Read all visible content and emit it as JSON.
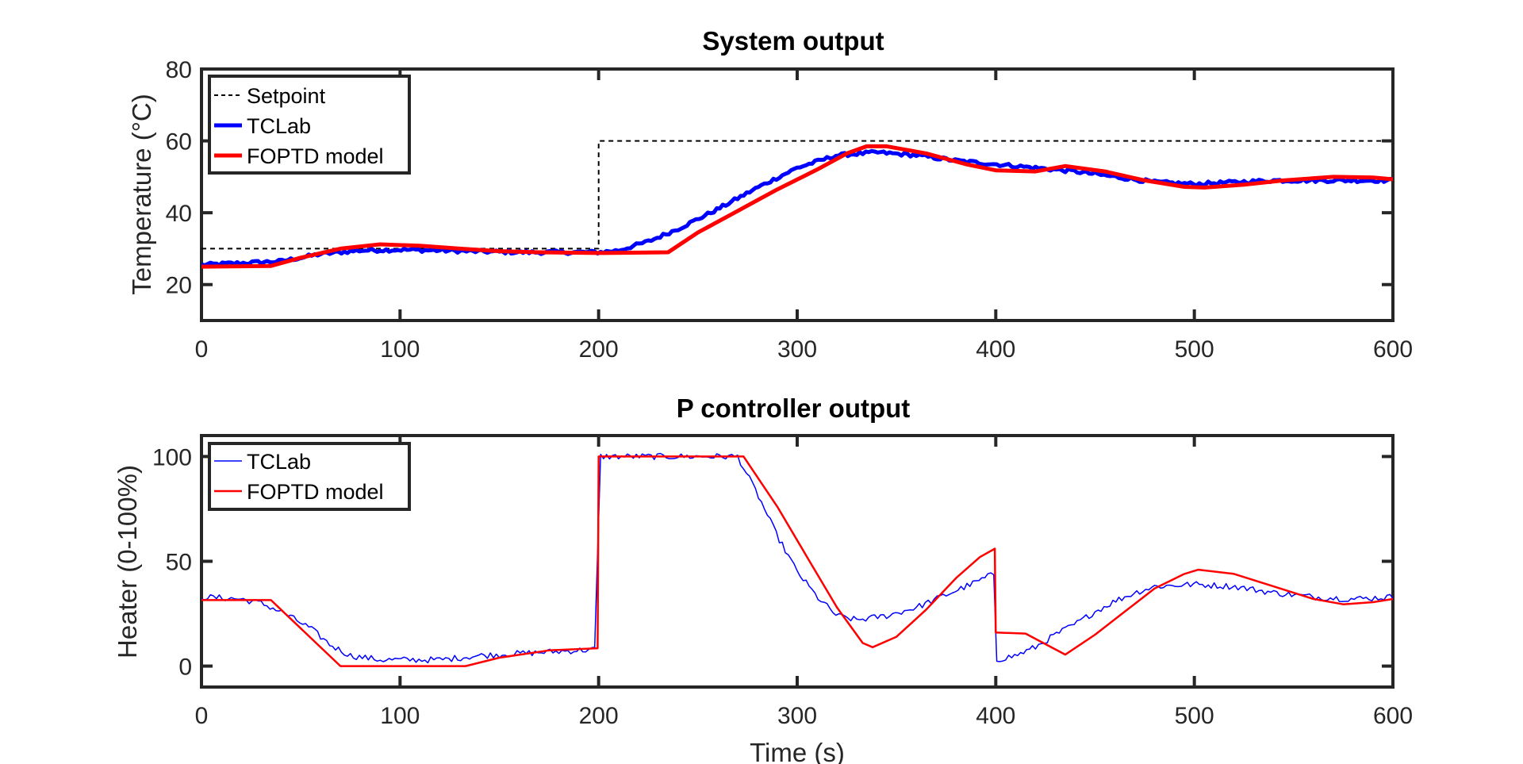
{
  "chart_data": [
    {
      "type": "line",
      "title": "System output",
      "xlabel": "",
      "ylabel": "Temperature (°C)",
      "xlim": [
        0,
        600
      ],
      "ylim": [
        10,
        80
      ],
      "xticks": [
        "0",
        "100",
        "200",
        "300",
        "400",
        "500",
        "600"
      ],
      "yticks": [
        "20",
        "40",
        "60",
        "80"
      ],
      "grid": false,
      "legend_position": "top-left",
      "series": [
        {
          "name": "Setpoint",
          "style": "dashed",
          "color": "#000000",
          "points": [
            [
              0,
              30
            ],
            [
              200,
              30
            ],
            [
              200,
              60
            ],
            [
              600,
              60
            ]
          ]
        },
        {
          "name": "TCLab",
          "style": "solid-noisy",
          "color": "#0000ff",
          "noise": 0.5,
          "points": [
            [
              0,
              25.5
            ],
            [
              20,
              26
            ],
            [
              40,
              26.5
            ],
            [
              60,
              28.5
            ],
            [
              80,
              29.5
            ],
            [
              100,
              29.7
            ],
            [
              120,
              29.5
            ],
            [
              140,
              29.2
            ],
            [
              160,
              29.0
            ],
            [
              180,
              29.0
            ],
            [
              200,
              29.0
            ],
            [
              210,
              29.5
            ],
            [
              225,
              32
            ],
            [
              240,
              35.5
            ],
            [
              260,
              41
            ],
            [
              280,
              47
            ],
            [
              300,
              52.5
            ],
            [
              320,
              56
            ],
            [
              340,
              56.8
            ],
            [
              360,
              56
            ],
            [
              380,
              54.5
            ],
            [
              400,
              53.5
            ],
            [
              420,
              52.5
            ],
            [
              440,
              51.5
            ],
            [
              460,
              50
            ],
            [
              480,
              48.5
            ],
            [
              500,
              48
            ],
            [
              520,
              48.5
            ],
            [
              540,
              49
            ],
            [
              560,
              49
            ],
            [
              580,
              49
            ],
            [
              600,
              49
            ]
          ]
        },
        {
          "name": "FOPTD model",
          "style": "solid",
          "color": "#ff0000",
          "points": [
            [
              0,
              25
            ],
            [
              35,
              25.2
            ],
            [
              50,
              27.5
            ],
            [
              70,
              30
            ],
            [
              90,
              31.2
            ],
            [
              110,
              30.8
            ],
            [
              130,
              30
            ],
            [
              150,
              29.3
            ],
            [
              170,
              29
            ],
            [
              200,
              28.8
            ],
            [
              235,
              29
            ],
            [
              250,
              34.5
            ],
            [
              270,
              40.5
            ],
            [
              290,
              46.5
            ],
            [
              310,
              52
            ],
            [
              325,
              56.5
            ],
            [
              335,
              58.5
            ],
            [
              345,
              58.5
            ],
            [
              365,
              56.5
            ],
            [
              385,
              53.5
            ],
            [
              400,
              51.8
            ],
            [
              420,
              51.5
            ],
            [
              435,
              53
            ],
            [
              455,
              51.5
            ],
            [
              475,
              49
            ],
            [
              495,
              47.2
            ],
            [
              505,
              47
            ],
            [
              525,
              47.8
            ],
            [
              545,
              49
            ],
            [
              570,
              50
            ],
            [
              590,
              49.8
            ],
            [
              600,
              49.3
            ]
          ]
        }
      ]
    },
    {
      "type": "line",
      "title": "P controller output",
      "xlabel": "Time (s)",
      "ylabel": "Heater (0-100%)",
      "xlim": [
        0,
        600
      ],
      "ylim": [
        -10,
        110
      ],
      "xticks": [
        "0",
        "100",
        "200",
        "300",
        "400",
        "500",
        "600"
      ],
      "yticks": [
        "0",
        "50",
        "100"
      ],
      "grid": false,
      "legend_position": "top-left",
      "series": [
        {
          "name": "TCLab",
          "style": "solid-noisy",
          "color": "#0000ff",
          "noise": 1.5,
          "points": [
            [
              0,
              33
            ],
            [
              20,
              32
            ],
            [
              30,
              30
            ],
            [
              40,
              26
            ],
            [
              55,
              18
            ],
            [
              65,
              10
            ],
            [
              75,
              5
            ],
            [
              90,
              3
            ],
            [
              120,
              3
            ],
            [
              140,
              5
            ],
            [
              160,
              6
            ],
            [
              180,
              7
            ],
            [
              199,
              8
            ],
            [
              200,
              100
            ],
            [
              270,
              100
            ],
            [
              280,
              82
            ],
            [
              290,
              62
            ],
            [
              300,
              45
            ],
            [
              310,
              33
            ],
            [
              320,
              24
            ],
            [
              330,
              22
            ],
            [
              345,
              24
            ],
            [
              360,
              28
            ],
            [
              375,
              34
            ],
            [
              390,
              40
            ],
            [
              399,
              44
            ],
            [
              400,
              3
            ],
            [
              410,
              5
            ],
            [
              420,
              9
            ],
            [
              430,
              15
            ],
            [
              440,
              20
            ],
            [
              450,
              26
            ],
            [
              460,
              31
            ],
            [
              470,
              35
            ],
            [
              480,
              38
            ],
            [
              500,
              39
            ],
            [
              520,
              38
            ],
            [
              540,
              35
            ],
            [
              560,
              33
            ],
            [
              580,
              32
            ],
            [
              600,
              33
            ]
          ]
        },
        {
          "name": "FOPTD model",
          "style": "solid",
          "color": "#ff0000",
          "points": [
            [
              0,
              31.5
            ],
            [
              35,
              31.5
            ],
            [
              70,
              0
            ],
            [
              133,
              0
            ],
            [
              150,
              4
            ],
            [
              175,
              7.5
            ],
            [
              199.5,
              8.5
            ],
            [
              200,
              100
            ],
            [
              273,
              100
            ],
            [
              290,
              76
            ],
            [
              305,
              52
            ],
            [
              320,
              28
            ],
            [
              333,
              11
            ],
            [
              338,
              9
            ],
            [
              350,
              14
            ],
            [
              365,
              27
            ],
            [
              380,
              42
            ],
            [
              392,
              52
            ],
            [
              399.5,
              56
            ],
            [
              400,
              16
            ],
            [
              415,
              15.5
            ],
            [
              435,
              5.5
            ],
            [
              450,
              15
            ],
            [
              465,
              26
            ],
            [
              480,
              37
            ],
            [
              495,
              44
            ],
            [
              502,
              46
            ],
            [
              520,
              44
            ],
            [
              540,
              38
            ],
            [
              560,
              32
            ],
            [
              575,
              29.5
            ],
            [
              590,
              30.5
            ],
            [
              600,
              32
            ]
          ]
        }
      ]
    }
  ]
}
